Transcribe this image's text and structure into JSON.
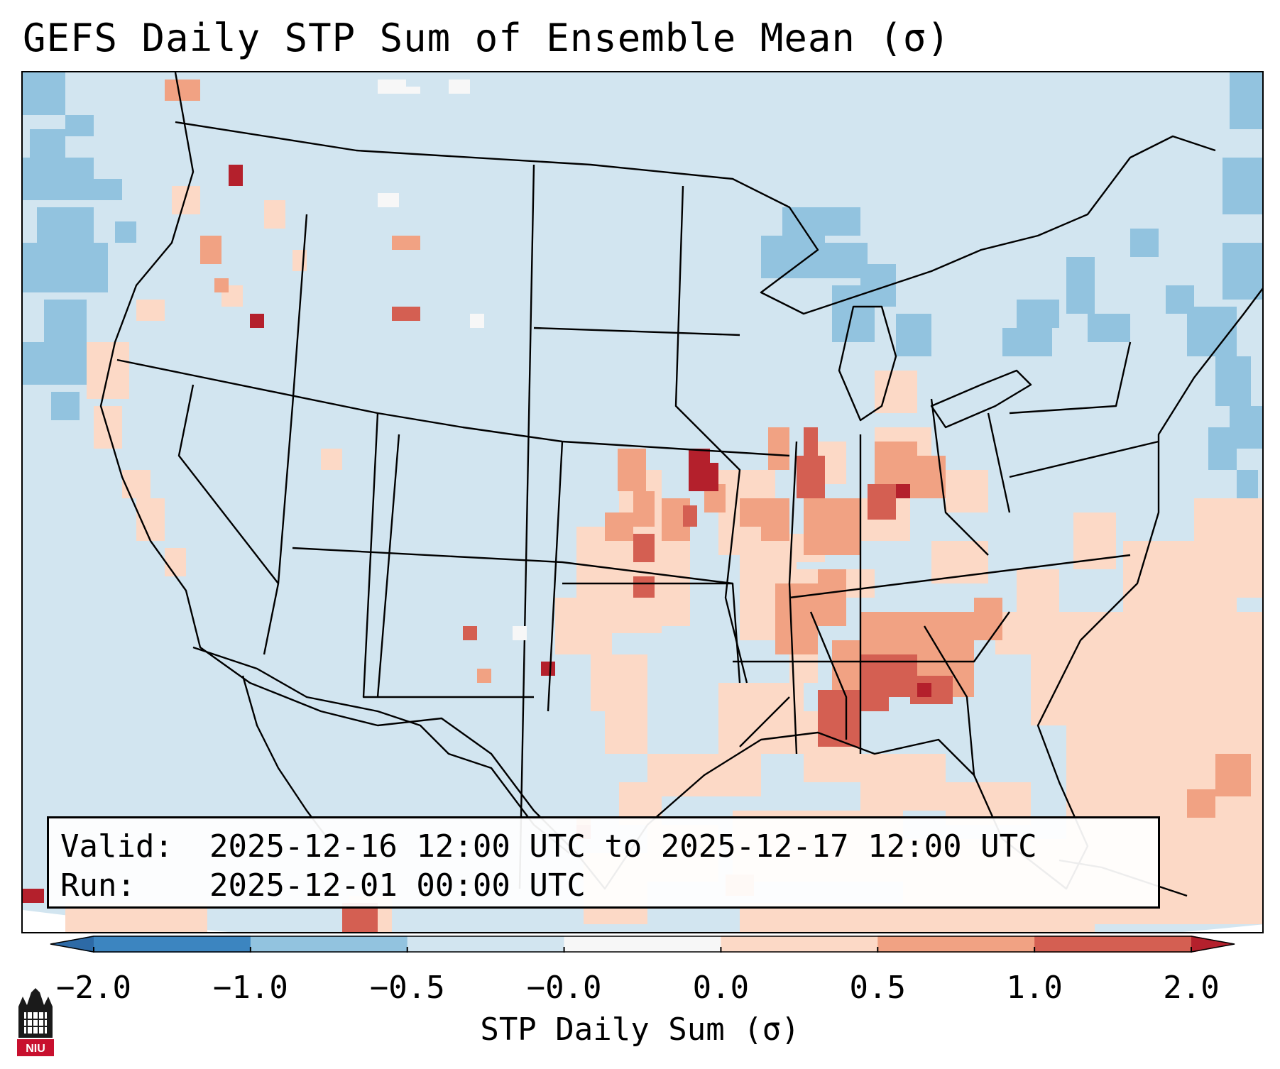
{
  "title": "GEFS Daily STP Sum of Ensemble Mean (σ)",
  "info": {
    "valid_label": "Valid:",
    "valid_value": "2025-12-16 12:00 UTC to 2025-12-17 12:00 UTC",
    "run_label": "Run:",
    "run_value": "2025-12-01 00:00 UTC"
  },
  "colorbar": {
    "label": "STP Daily Sum (σ)",
    "ticks": [
      "−2.0",
      "−1.0",
      "−0.5",
      "−0.0",
      "0.0",
      "0.5",
      "1.0",
      "2.0"
    ],
    "colors": [
      "#3c85c0",
      "#92c3df",
      "#d2e5f0",
      "#f7f7f7",
      "#fcd9c6",
      "#f1a283",
      "#d45f52"
    ],
    "extend_low_color": "#2d6aa6",
    "extend_high_color": "#b4202c",
    "background_color": "#d2e5f0"
  },
  "logo": {
    "text": "NIU",
    "color": "#c8102e"
  }
}
